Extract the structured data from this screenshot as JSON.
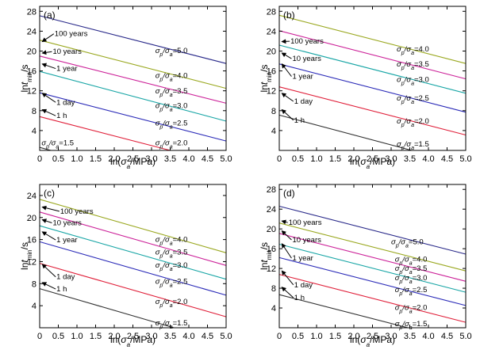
{
  "chart_data": [
    {
      "type": "line",
      "panel": "(a)",
      "xlabel": "ln(σa/MPa)",
      "ylabel": "lnt_min/s",
      "xlim": [
        0,
        5
      ],
      "ylim": [
        0,
        29
      ],
      "xticks": [
        "0",
        "0.5",
        "1.0",
        "1.5",
        "2.0",
        "2.5",
        "3.0",
        "3.5",
        "4.0",
        "4.5",
        "5.0"
      ],
      "yticks": [
        "4",
        "8",
        "12",
        "16",
        "20",
        "24",
        "28"
      ],
      "series": [
        {
          "name": "σp/σa=5.0",
          "color": "#2a2a8a",
          "x": [
            0,
            5
          ],
          "y": [
            27.1,
            17.5
          ]
        },
        {
          "name": "σp/σa=4.0",
          "color": "#9aa820",
          "x": [
            0,
            5
          ],
          "y": [
            22.2,
            12.5
          ]
        },
        {
          "name": "σp/σa=3.5",
          "color": "#cc2299",
          "x": [
            0,
            5
          ],
          "y": [
            19.0,
            9.5
          ]
        },
        {
          "name": "σp/σa=3.0",
          "color": "#1aa6a6",
          "x": [
            0,
            5
          ],
          "y": [
            15.9,
            5.9
          ]
        },
        {
          "name": "σp/σa=2.5",
          "color": "#2b2bb8",
          "x": [
            0,
            5
          ],
          "y": [
            11.6,
            1.9
          ]
        },
        {
          "name": "σp/σa=2.0",
          "color": "#e0203a",
          "x": [
            0,
            3.5
          ],
          "y": [
            6.8,
            0
          ]
        },
        {
          "name": "σp/σa=1.5",
          "color": "#333333",
          "x": [
            0,
            0.3
          ],
          "y": [
            0.6,
            0
          ]
        }
      ],
      "line_labels": [
        {
          "text": "σp/σa=5.0",
          "x": 3.1,
          "y": 19.6
        },
        {
          "text": "σp/σa=4.0",
          "x": 3.1,
          "y": 14.6
        },
        {
          "text": "σp/σa=3.5",
          "x": 3.1,
          "y": 11.5
        },
        {
          "text": "σp/σa=3.0",
          "x": 3.1,
          "y": 8.5
        },
        {
          "text": "σp/σa=2.5",
          "x": 3.1,
          "y": 5.0
        },
        {
          "text": "σp/σa=2.0",
          "x": 3.1,
          "y": 1.0
        },
        {
          "text": "σp/σa=1.5",
          "x": 0.05,
          "y": 1.0
        }
      ],
      "annotations": [
        {
          "text": "100 years",
          "x": 0.4,
          "y": 23.0,
          "ax": 0.05,
          "ay": 21.9
        },
        {
          "text": "10 years",
          "x": 0.35,
          "y": 19.4,
          "ax": 0.05,
          "ay": 19.6
        },
        {
          "text": "1 year",
          "x": 0.45,
          "y": 16.0,
          "ax": 0.05,
          "ay": 17.4
        },
        {
          "text": "1 day",
          "x": 0.45,
          "y": 9.2,
          "ax": 0.05,
          "ay": 11.5
        },
        {
          "text": "1 h",
          "x": 0.45,
          "y": 6.5,
          "ax": 0.05,
          "ay": 8.2
        }
      ]
    },
    {
      "type": "line",
      "panel": "(b)",
      "xlabel": "ln(σa/MPa)",
      "ylabel": "lnt_min/s",
      "xlim": [
        0,
        5
      ],
      "ylim": [
        0,
        29
      ],
      "xticks": [
        "0",
        "0.5",
        "1.0",
        "1.5",
        "2.0",
        "2.5",
        "3.0",
        "3.5",
        "4.0",
        "4.5",
        "5.0"
      ],
      "yticks": [
        "4",
        "8",
        "12",
        "16",
        "20",
        "24",
        "28"
      ],
      "series": [
        {
          "name": "σp/σa=4.0",
          "color": "#9aa820",
          "x": [
            0,
            5
          ],
          "y": [
            27.2,
            17.5
          ]
        },
        {
          "name": "σp/σa=3.5",
          "color": "#cc2299",
          "x": [
            0,
            5
          ],
          "y": [
            24.1,
            14.4
          ]
        },
        {
          "name": "σp/σa=3.0",
          "color": "#1aa6a6",
          "x": [
            0,
            5
          ],
          "y": [
            21.2,
            11.5
          ]
        },
        {
          "name": "σp/σa=2.5",
          "color": "#2b2bb8",
          "x": [
            0,
            5
          ],
          "y": [
            17.4,
            7.7
          ]
        },
        {
          "name": "σp/σa=2.0",
          "color": "#e0203a",
          "x": [
            0,
            5
          ],
          "y": [
            12.8,
            3.1
          ]
        },
        {
          "name": "σp/σa=1.5",
          "color": "#333333",
          "x": [
            0,
            3.55
          ],
          "y": [
            7.1,
            0
          ]
        }
      ],
      "line_labels": [
        {
          "text": "σp/σa=4.0",
          "x": 3.15,
          "y": 19.9
        },
        {
          "text": "σp/σa=3.5",
          "x": 3.15,
          "y": 16.9
        },
        {
          "text": "σp/σa=3.0",
          "x": 3.15,
          "y": 13.8
        },
        {
          "text": "σp/σa=2.5",
          "x": 3.15,
          "y": 10.0
        },
        {
          "text": "σp/σa=2.0",
          "x": 3.15,
          "y": 5.4
        },
        {
          "text": "σp/σa=1.5",
          "x": 3.15,
          "y": 0.8
        }
      ],
      "annotations": [
        {
          "text": "100 years",
          "x": 0.3,
          "y": 21.5,
          "ax": 0.05,
          "ay": 21.9
        },
        {
          "text": "10 years",
          "x": 0.35,
          "y": 18.0,
          "ax": 0.05,
          "ay": 19.6
        },
        {
          "text": "1 year",
          "x": 0.35,
          "y": 14.4,
          "ax": 0.05,
          "ay": 17.4
        },
        {
          "text": "1 day",
          "x": 0.4,
          "y": 9.4,
          "ax": 0.05,
          "ay": 11.5
        },
        {
          "text": "1 h",
          "x": 0.4,
          "y": 5.6,
          "ax": 0.05,
          "ay": 8.2
        }
      ]
    },
    {
      "type": "line",
      "panel": "(c)",
      "xlabel": "ln(σa/MPa)",
      "ylabel": "lnt_min/s",
      "xlim": [
        0,
        5
      ],
      "ylim": [
        0,
        26
      ],
      "xticks": [
        "0",
        "0.5",
        "1.0",
        "1.5",
        "2.0",
        "2.5",
        "3.0",
        "3.5",
        "4.0",
        "4.5",
        "5.0"
      ],
      "yticks": [
        "4",
        "8",
        "12",
        "16",
        "20",
        "24"
      ],
      "series": [
        {
          "name": "σp/σa=4.0",
          "color": "#9aa820",
          "x": [
            0,
            5
          ],
          "y": [
            23.3,
            13.6
          ]
        },
        {
          "name": "σp/σa=3.5",
          "color": "#cc2299",
          "x": [
            0,
            5
          ],
          "y": [
            21.0,
            11.3
          ]
        },
        {
          "name": "σp/σa=3.0",
          "color": "#1aa6a6",
          "x": [
            0,
            5
          ],
          "y": [
            18.5,
            8.8
          ]
        },
        {
          "name": "σp/σa=2.5",
          "color": "#2b2bb8",
          "x": [
            0,
            5
          ],
          "y": [
            15.6,
            5.9
          ]
        },
        {
          "name": "σp/σa=2.0",
          "color": "#e0203a",
          "x": [
            0,
            5
          ],
          "y": [
            11.7,
            2.0
          ]
        },
        {
          "name": "σp/σa=1.5",
          "color": "#333333",
          "x": [
            0,
            3.6
          ],
          "y": [
            7.1,
            0
          ]
        }
      ],
      "line_labels": [
        {
          "text": "σp/σa=4.0",
          "x": 3.1,
          "y": 15.6
        },
        {
          "text": "σp/σa=3.5",
          "x": 3.1,
          "y": 13.3
        },
        {
          "text": "σp/σa=3.0",
          "x": 3.1,
          "y": 10.9
        },
        {
          "text": "σp/σa=2.5",
          "x": 3.1,
          "y": 8.0
        },
        {
          "text": "σp/σa=2.0",
          "x": 3.1,
          "y": 4.3
        },
        {
          "text": "σp/σa=1.5",
          "x": 3.1,
          "y": 0.4
        }
      ],
      "annotations": [
        {
          "text": "100 years",
          "x": 0.55,
          "y": 20.7,
          "ax": 0.05,
          "ay": 21.9
        },
        {
          "text": "10 years",
          "x": 0.35,
          "y": 18.6,
          "ax": 0.05,
          "ay": 19.6
        },
        {
          "text": "1 year",
          "x": 0.45,
          "y": 15.5,
          "ax": 0.05,
          "ay": 17.4
        },
        {
          "text": "1 day",
          "x": 0.45,
          "y": 8.8,
          "ax": 0.05,
          "ay": 11.5
        },
        {
          "text": "1 h",
          "x": 0.45,
          "y": 6.6,
          "ax": 0.05,
          "ay": 8.2
        }
      ]
    },
    {
      "type": "line",
      "panel": "(d)",
      "xlabel": "ln(σa/MPa)",
      "ylabel": "lnt_min/s",
      "xlim": [
        0,
        5
      ],
      "ylim": [
        0,
        29
      ],
      "xticks": [
        "0",
        "0.5",
        "1.0",
        "1.5",
        "2.0",
        "2.5",
        "3.0",
        "3.5",
        "4.0",
        "4.5",
        "5.0"
      ],
      "yticks": [
        "4",
        "8",
        "12",
        "16",
        "20",
        "24",
        "28"
      ],
      "series": [
        {
          "name": "σp/σa=5.0",
          "color": "#2a2a8a",
          "x": [
            0,
            5
          ],
          "y": [
            24.6,
            14.9
          ]
        },
        {
          "name": "σp/σa=4.0",
          "color": "#9aa820",
          "x": [
            0,
            5
          ],
          "y": [
            21.2,
            11.5
          ]
        },
        {
          "name": "σp/σa=3.5",
          "color": "#cc2299",
          "x": [
            0,
            5
          ],
          "y": [
            19.1,
            9.4
          ]
        },
        {
          "name": "σp/σa=3.0",
          "color": "#1aa6a6",
          "x": [
            0,
            5
          ],
          "y": [
            16.9,
            7.2
          ]
        },
        {
          "name": "σp/σa=2.5",
          "color": "#2b2bb8",
          "x": [
            0,
            5
          ],
          "y": [
            14.2,
            4.5
          ]
        },
        {
          "name": "σp/σa=2.0",
          "color": "#e0203a",
          "x": [
            0,
            5
          ],
          "y": [
            10.8,
            1.1
          ]
        },
        {
          "name": "σp/σa=1.5",
          "color": "#333333",
          "x": [
            0,
            3.45
          ],
          "y": [
            6.7,
            0
          ]
        }
      ],
      "line_labels": [
        {
          "text": "σp/σa=5.0",
          "x": 3.0,
          "y": 16.9
        },
        {
          "text": "σp/σa=4.0",
          "x": 3.1,
          "y": 13.4
        },
        {
          "text": "σp/σa=3.5",
          "x": 3.1,
          "y": 11.5
        },
        {
          "text": "σp/σa=3.0",
          "x": 3.1,
          "y": 9.6
        },
        {
          "text": "σp/σa=2.5",
          "x": 3.1,
          "y": 7.2
        },
        {
          "text": "σp/σa=2.0",
          "x": 3.1,
          "y": 3.6
        },
        {
          "text": "σp/σa=1.5",
          "x": 3.1,
          "y": 0.3
        }
      ],
      "annotations": [
        {
          "text": "100 years",
          "x": 0.25,
          "y": 20.8,
          "ax": 0.05,
          "ay": 21.6
        },
        {
          "text": "10 years",
          "x": 0.35,
          "y": 17.3,
          "ax": 0.05,
          "ay": 19.6
        },
        {
          "text": "1 year",
          "x": 0.35,
          "y": 13.6,
          "ax": 0.05,
          "ay": 17.0
        },
        {
          "text": "1 day",
          "x": 0.4,
          "y": 8.2,
          "ax": 0.05,
          "ay": 11.5
        },
        {
          "text": "1 h",
          "x": 0.4,
          "y": 5.6,
          "ax": 0.05,
          "ay": 8.2
        }
      ]
    }
  ]
}
